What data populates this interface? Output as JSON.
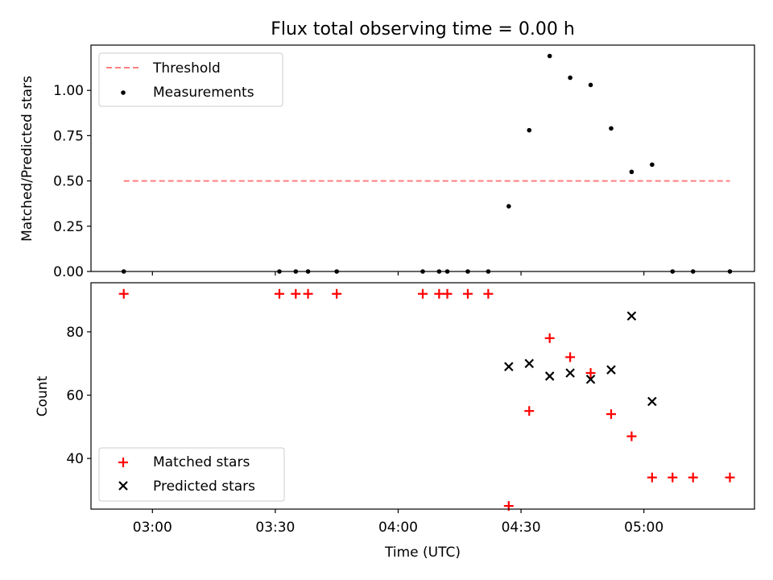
{
  "title": "Flux total observing time = 0.00 h",
  "xlabel": "Time (UTC)",
  "chart_data": [
    {
      "type": "scatter",
      "ylabel": "Matched/Predicted stars",
      "ylim": [
        0,
        1.25
      ],
      "yticks": [
        "0.00",
        "0.25",
        "0.50",
        "0.75",
        "1.00"
      ],
      "xlim": [
        "02:45",
        "05:27"
      ],
      "legend_loc": "top-left",
      "threshold": {
        "name": "Threshold",
        "y": 0.5,
        "x_from": "02:53",
        "x_to": "05:21",
        "color": "#ff7f7f"
      },
      "series": [
        {
          "name": "Measurements",
          "color": "#000000",
          "marker": "dot",
          "x": [
            "02:53",
            "03:31",
            "03:35",
            "03:38",
            "03:45",
            "04:06",
            "04:10",
            "04:12",
            "04:17",
            "04:22",
            "04:27",
            "04:32",
            "04:37",
            "04:42",
            "04:47",
            "04:52",
            "04:57",
            "05:02",
            "05:07",
            "05:12",
            "05:21"
          ],
          "y": [
            0,
            0,
            0,
            0,
            0,
            0,
            0,
            0,
            0,
            0,
            0.36,
            0.78,
            1.19,
            1.07,
            1.03,
            0.79,
            0.55,
            0.59,
            0,
            0,
            0
          ]
        }
      ]
    },
    {
      "type": "scatter",
      "ylabel": "Count",
      "ylim": [
        24,
        95.5
      ],
      "yticks": [
        "40",
        "60",
        "80"
      ],
      "xlim": [
        "02:45",
        "05:27"
      ],
      "xticks": [
        "03:00",
        "03:30",
        "04:00",
        "04:30",
        "05:00"
      ],
      "legend_loc": "bottom-left",
      "series": [
        {
          "name": "Matched stars",
          "color": "#ff0000",
          "marker": "plus",
          "x": [
            "02:53",
            "03:31",
            "03:35",
            "03:38",
            "03:45",
            "04:06",
            "04:10",
            "04:12",
            "04:17",
            "04:22",
            "04:27",
            "04:32",
            "04:37",
            "04:42",
            "04:47",
            "04:52",
            "04:57",
            "05:02",
            "05:07",
            "05:12",
            "05:21"
          ],
          "y": [
            92,
            92,
            92,
            92,
            92,
            92,
            92,
            92,
            92,
            92,
            25,
            55,
            78,
            72,
            67,
            54,
            47,
            34,
            34,
            34,
            34
          ]
        },
        {
          "name": "Predicted stars",
          "color": "#000000",
          "marker": "x",
          "x": [
            "04:27",
            "04:32",
            "04:37",
            "04:42",
            "04:47",
            "04:52",
            "04:57",
            "05:02"
          ],
          "y": [
            69,
            70,
            66,
            67,
            65,
            68,
            85,
            58
          ]
        }
      ]
    }
  ]
}
